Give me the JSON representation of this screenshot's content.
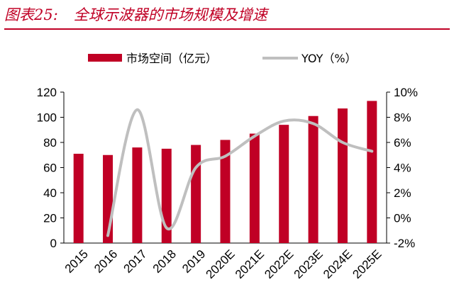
{
  "header": {
    "figure_label": "图表25:",
    "figure_title": "全球示波器的市场规模及增速"
  },
  "colors": {
    "bar": "#c00025",
    "line": "#bfbfbf",
    "title": "#c00025",
    "axis": "#000000"
  },
  "chart_data": {
    "type": "bar+line",
    "title": "全球示波器的市场规模及增速",
    "categories": [
      "2015",
      "2016",
      "2017",
      "2018",
      "2019",
      "2020E",
      "2021E",
      "2022E",
      "2023E",
      "2024E",
      "2025E"
    ],
    "series": [
      {
        "name": "市场空间（亿元）",
        "type": "bar",
        "axis": "left",
        "values": [
          71,
          70,
          76,
          75,
          78,
          82,
          87,
          94,
          101,
          107,
          113
        ]
      },
      {
        "name": "YOY（%）",
        "type": "line",
        "axis": "right",
        "values": [
          null,
          -1.4,
          8.6,
          -0.8,
          4.0,
          4.9,
          6.5,
          7.7,
          7.5,
          6.0,
          5.3
        ]
      }
    ],
    "y_left": {
      "min": 0,
      "max": 120,
      "ticks": [
        "0",
        "20",
        "40",
        "60",
        "80",
        "100",
        "120"
      ]
    },
    "y_right": {
      "min": -2,
      "max": 10,
      "ticks": [
        "-2%",
        "0%",
        "2%",
        "4%",
        "6%",
        "8%",
        "10%"
      ]
    },
    "legend": {
      "placement": "top-center",
      "items": [
        "市场空间（亿元）",
        "YOY（%）"
      ]
    }
  }
}
